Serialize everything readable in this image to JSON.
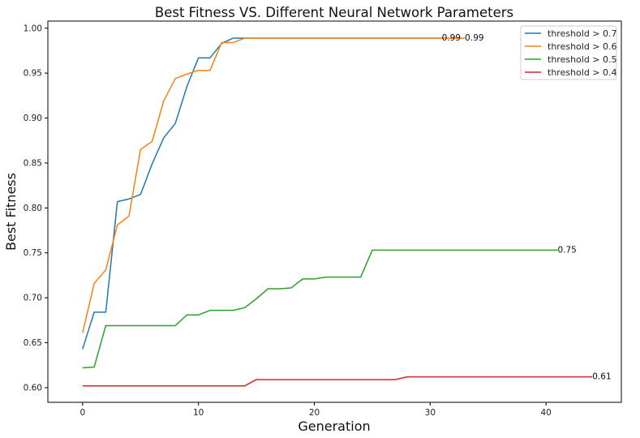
{
  "chart_data": {
    "type": "line",
    "title": "Best Fitness VS. Different Neural Network Parameters",
    "xlabel": "Generation",
    "ylabel": "Best Fitness",
    "xlim": [
      -3,
      46.5
    ],
    "ylim": [
      0.5837,
      1.0079
    ],
    "xticks": [
      0,
      10,
      20,
      30,
      40
    ],
    "yticks": [
      0.6,
      0.65,
      0.7,
      0.75,
      0.8,
      0.85,
      0.9,
      0.95,
      1.0
    ],
    "ytick_labels": [
      "0.60",
      "0.65",
      "0.70",
      "0.75",
      "0.80",
      "0.85",
      "0.90",
      "0.95",
      "1.00"
    ],
    "grid": false,
    "legend_position": "top-right",
    "series": [
      {
        "name": "threshold > 0.7",
        "color": "#1f77b4",
        "x": [
          0,
          1,
          2,
          3,
          4,
          5,
          6,
          7,
          8,
          9,
          10,
          11,
          12,
          13,
          14,
          15,
          16,
          17,
          18,
          19,
          20,
          21,
          22,
          23,
          24,
          25,
          26,
          27,
          28,
          29,
          30,
          31
        ],
        "y": [
          0.643,
          0.684,
          0.684,
          0.807,
          0.81,
          0.815,
          0.849,
          0.878,
          0.894,
          0.935,
          0.967,
          0.967,
          0.983,
          0.989,
          0.989,
          0.989,
          0.989,
          0.989,
          0.989,
          0.989,
          0.989,
          0.989,
          0.989,
          0.989,
          0.989,
          0.989,
          0.989,
          0.989,
          0.989,
          0.989,
          0.989,
          0.989
        ],
        "end_label": "0.99"
      },
      {
        "name": "threshold > 0.6",
        "color": "#ff7f0e",
        "x": [
          0,
          1,
          2,
          3,
          4,
          5,
          6,
          7,
          8,
          9,
          10,
          11,
          12,
          13,
          14,
          15,
          16,
          17,
          18,
          19,
          20,
          21,
          22,
          23,
          24,
          25,
          26,
          27,
          28,
          29,
          30,
          31,
          32,
          33
        ],
        "y": [
          0.661,
          0.716,
          0.731,
          0.781,
          0.791,
          0.865,
          0.874,
          0.919,
          0.944,
          0.949,
          0.953,
          0.953,
          0.984,
          0.984,
          0.989,
          0.989,
          0.989,
          0.989,
          0.989,
          0.989,
          0.989,
          0.989,
          0.989,
          0.989,
          0.989,
          0.989,
          0.989,
          0.989,
          0.989,
          0.989,
          0.989,
          0.989,
          0.989,
          0.989
        ],
        "end_label": "0.99"
      },
      {
        "name": "threshold > 0.5",
        "color": "#2ca02c",
        "x": [
          0,
          1,
          2,
          3,
          4,
          5,
          6,
          7,
          8,
          9,
          10,
          11,
          12,
          13,
          14,
          15,
          16,
          17,
          18,
          19,
          20,
          21,
          22,
          23,
          24,
          25,
          26,
          27,
          28,
          29,
          30,
          31,
          32,
          33,
          34,
          35,
          36,
          37,
          38,
          39,
          40,
          41
        ],
        "y": [
          0.622,
          0.623,
          0.669,
          0.669,
          0.669,
          0.669,
          0.669,
          0.669,
          0.669,
          0.681,
          0.681,
          0.686,
          0.686,
          0.686,
          0.689,
          0.699,
          0.71,
          0.71,
          0.711,
          0.721,
          0.721,
          0.723,
          0.723,
          0.723,
          0.723,
          0.753,
          0.753,
          0.753,
          0.753,
          0.753,
          0.753,
          0.753,
          0.753,
          0.753,
          0.753,
          0.753,
          0.753,
          0.753,
          0.753,
          0.753,
          0.753,
          0.753
        ],
        "end_label": "0.75"
      },
      {
        "name": "threshold > 0.4",
        "color": "#d62728",
        "x": [
          0,
          1,
          2,
          3,
          4,
          5,
          6,
          7,
          8,
          9,
          10,
          11,
          12,
          13,
          14,
          15,
          16,
          17,
          18,
          19,
          20,
          21,
          22,
          23,
          24,
          25,
          26,
          27,
          28,
          29,
          30,
          31,
          32,
          33,
          34,
          35,
          36,
          37,
          38,
          39,
          40,
          41,
          42,
          43,
          44
        ],
        "y": [
          0.602,
          0.602,
          0.602,
          0.602,
          0.602,
          0.602,
          0.602,
          0.602,
          0.602,
          0.602,
          0.602,
          0.602,
          0.602,
          0.602,
          0.602,
          0.609,
          0.609,
          0.609,
          0.609,
          0.609,
          0.609,
          0.609,
          0.609,
          0.609,
          0.609,
          0.609,
          0.609,
          0.609,
          0.612,
          0.612,
          0.612,
          0.612,
          0.612,
          0.612,
          0.612,
          0.612,
          0.612,
          0.612,
          0.612,
          0.612,
          0.612,
          0.612,
          0.612,
          0.612,
          0.612
        ],
        "end_label": "0.61"
      }
    ]
  }
}
